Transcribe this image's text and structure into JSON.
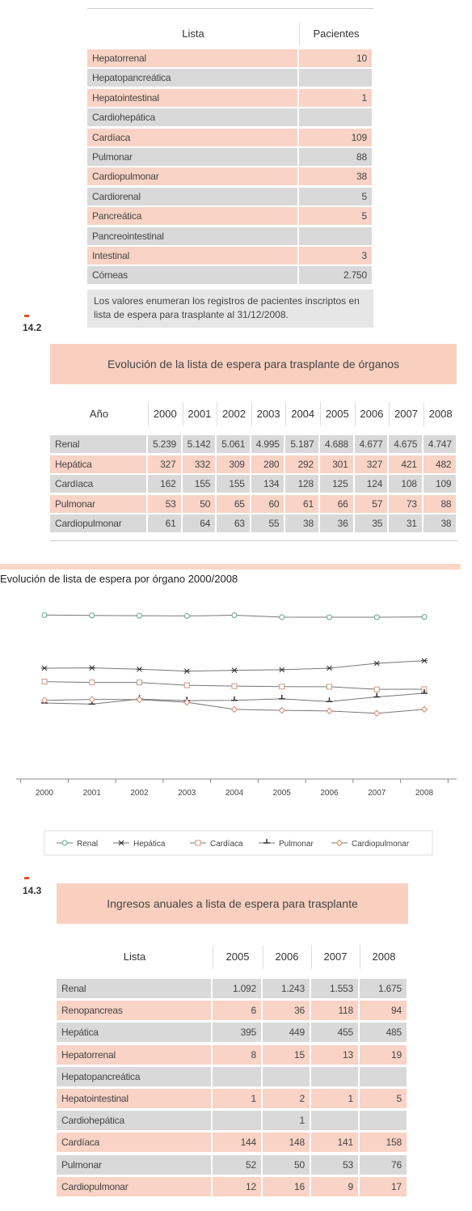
{
  "listas_table": {
    "headers": [
      "Lista",
      "Pacientes"
    ],
    "rows": [
      [
        "Hepatorrenal",
        "10"
      ],
      [
        "Hepatopancreática",
        null
      ],
      [
        "Hepatointestinal",
        "1"
      ],
      [
        "Cardiohepática",
        null
      ],
      [
        "Cardíaca",
        "109"
      ],
      [
        "Pulmonar",
        "88"
      ],
      [
        "Cardiopulmonar",
        "38"
      ],
      [
        "Cardiorenal",
        "5"
      ],
      [
        "Pancreática",
        "5"
      ],
      [
        "Pancreointestinal",
        null
      ],
      [
        "Intestinal",
        "3"
      ],
      [
        "Córneas",
        "2.750"
      ]
    ],
    "note": "Los valores enumeran los registros de pacientes inscriptos en lista de espera para trasplante al 31/12/2008."
  },
  "table_14_2": {
    "number": "14.2",
    "title": "Evolución de la lista de espera para trasplante de órganos",
    "headers": [
      "Año",
      "2000",
      "2001",
      "2002",
      "2003",
      "2004",
      "2005",
      "2006",
      "2007",
      "2008"
    ],
    "rows": [
      [
        "Renal",
        "5.239",
        "5.142",
        "5.061",
        "4.995",
        "5.187",
        "4.688",
        "4.677",
        "4.675",
        "4.747"
      ],
      [
        "Hepática",
        "327",
        "332",
        "309",
        "280",
        "292",
        "301",
        "327",
        "421",
        "482"
      ],
      [
        "Cardíaca",
        "162",
        "155",
        "155",
        "134",
        "128",
        "125",
        "124",
        "108",
        "109"
      ],
      [
        "Pulmonar",
        "53",
        "50",
        "65",
        "60",
        "61",
        "66",
        "57",
        "73",
        "88"
      ],
      [
        "Cardiopulmonar",
        "61",
        "64",
        "63",
        "55",
        "38",
        "36",
        "35",
        "31",
        "38"
      ]
    ]
  },
  "chart_data": {
    "type": "line",
    "title": "Evolución de lista de espera por órgano 2000/2008",
    "categories": [
      "2000",
      "2001",
      "2002",
      "2003",
      "2004",
      "2005",
      "2006",
      "2007",
      "2008"
    ],
    "log_scale": true,
    "ylim": [
      1,
      10000
    ],
    "series": [
      {
        "name": "Renal",
        "color": "#5aa58f",
        "marker": "circle",
        "values": [
          5239,
          5142,
          5061,
          4995,
          5187,
          4688,
          4677,
          4675,
          4747
        ]
      },
      {
        "name": "Hepática",
        "color": "#333333",
        "marker": "star",
        "values": [
          327,
          332,
          309,
          280,
          292,
          301,
          327,
          421,
          482
        ]
      },
      {
        "name": "Cardíaca",
        "color": "#d4967c",
        "marker": "square",
        "values": [
          162,
          155,
          155,
          134,
          128,
          125,
          124,
          108,
          109
        ]
      },
      {
        "name": "Pulmonar",
        "color": "#333333",
        "marker": "tick",
        "values": [
          53,
          50,
          65,
          60,
          61,
          66,
          57,
          73,
          88
        ]
      },
      {
        "name": "Cardiopulmonar",
        "color": "#d4826a",
        "marker": "diamond",
        "values": [
          61,
          64,
          63,
          55,
          38,
          36,
          35,
          31,
          38
        ]
      }
    ]
  },
  "table_14_3": {
    "number": "14.3",
    "title": "Ingresos anuales a lista de espera para trasplante",
    "headers": [
      "Lista",
      "2005",
      "2006",
      "2007",
      "2008"
    ],
    "rows": [
      [
        "Renal",
        "1.092",
        "1.243",
        "1.553",
        "1.675"
      ],
      [
        "Renopancreas",
        "6",
        "36",
        "118",
        "94"
      ],
      [
        "Hepática",
        "395",
        "449",
        "455",
        "485"
      ],
      [
        "Hepatorrenal",
        "8",
        "15",
        "13",
        "19"
      ],
      [
        "Hepatopancreática",
        null,
        null,
        null,
        null
      ],
      [
        "Hepatointestinal",
        "1",
        "2",
        "1",
        "5"
      ],
      [
        "Cardiohepática",
        null,
        "1",
        null,
        null
      ],
      [
        "Cardíaca",
        "144",
        "148",
        "141",
        "158"
      ],
      [
        "Pulmonar",
        "52",
        "50",
        "53",
        "76"
      ],
      [
        "Cardiopulmonar",
        "12",
        "16",
        "9",
        "17"
      ]
    ]
  }
}
